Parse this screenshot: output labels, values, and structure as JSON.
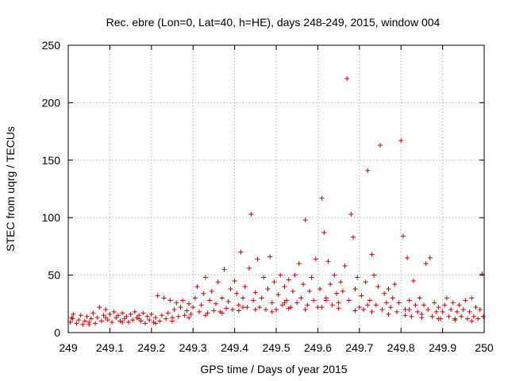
{
  "chart_data": {
    "type": "scatter",
    "title": "Rec. ebre (Lon=0, Lat=40, h=HE), days 248-249, 2015, window 004",
    "xlabel": "GPS time / Days of year 2015",
    "ylabel": "STEC from uqrg / TECUs",
    "xlim": [
      249,
      250
    ],
    "ylim": [
      0,
      250
    ],
    "xticks": [
      249,
      249.1,
      249.2,
      249.3,
      249.4,
      249.5,
      249.6,
      249.7,
      249.8,
      249.9,
      250
    ],
    "xtick_labels": [
      "249",
      "249.1",
      "249.2",
      "249.3",
      "249.4",
      "249.5",
      "249.6",
      "249.7",
      "249.8",
      "249.9",
      "250"
    ],
    "yticks": [
      0,
      50,
      100,
      150,
      200,
      250
    ],
    "ytick_labels": [
      "0",
      "50",
      "100",
      "150",
      "200",
      "250"
    ],
    "grid": true,
    "marker": "plus",
    "marker_color": "#cc0000",
    "series": [
      {
        "points": [
          [
            249.005,
            9
          ],
          [
            249.008,
            13
          ],
          [
            249.012,
            16
          ],
          [
            249.02,
            8
          ],
          [
            249.025,
            11
          ],
          [
            249.03,
            15
          ],
          [
            249.035,
            7
          ],
          [
            249.04,
            10
          ],
          [
            249.045,
            14
          ],
          [
            249.05,
            9
          ],
          [
            249.055,
            12
          ],
          [
            249.06,
            17
          ],
          [
            249.065,
            8
          ],
          [
            249.07,
            13
          ],
          [
            249.075,
            22
          ],
          [
            249.08,
            10
          ],
          [
            249.085,
            15
          ],
          [
            249.09,
            20
          ],
          [
            249.095,
            11
          ],
          [
            249.1,
            16
          ],
          [
            249.105,
            9
          ],
          [
            249.11,
            18
          ],
          [
            249.115,
            13
          ],
          [
            249.12,
            15
          ],
          [
            249.125,
            10
          ],
          [
            249.13,
            17
          ],
          [
            249.135,
            12
          ],
          [
            249.14,
            14
          ],
          [
            249.145,
            9
          ],
          [
            249.15,
            16
          ],
          [
            249.155,
            11
          ],
          [
            249.16,
            18
          ],
          [
            249.165,
            13
          ],
          [
            249.17,
            15
          ],
          [
            249.175,
            10
          ],
          [
            249.18,
            17
          ],
          [
            249.185,
            8
          ],
          [
            249.19,
            14
          ],
          [
            249.195,
            11
          ],
          [
            249.2,
            16
          ],
          [
            249.205,
            9
          ],
          [
            249.21,
            13
          ],
          [
            249.215,
            32
          ],
          [
            249.22,
            10
          ],
          [
            249.225,
            15
          ],
          [
            249.23,
            30
          ],
          [
            249.235,
            12
          ],
          [
            249.24,
            17
          ],
          [
            249.245,
            28
          ],
          [
            249.25,
            13
          ],
          [
            249.255,
            20
          ],
          [
            249.26,
            26
          ],
          [
            249.265,
            14
          ],
          [
            249.27,
            22
          ],
          [
            249.275,
            28
          ],
          [
            249.28,
            15
          ],
          [
            249.285,
            19
          ],
          [
            249.29,
            25
          ],
          [
            249.295,
            16
          ],
          [
            249.3,
            22
          ],
          [
            249.305,
            30
          ],
          [
            249.31,
            40
          ],
          [
            249.315,
            18
          ],
          [
            249.32,
            24
          ],
          [
            249.325,
            34
          ],
          [
            249.33,
            48
          ],
          [
            249.335,
            17
          ],
          [
            249.34,
            28
          ],
          [
            249.345,
            36
          ],
          [
            249.35,
            19
          ],
          [
            249.355,
            25
          ],
          [
            249.36,
            44
          ],
          [
            249.365,
            18
          ],
          [
            249.37,
            30
          ],
          [
            249.375,
            55
          ],
          [
            249.38,
            21
          ],
          [
            249.385,
            27
          ],
          [
            249.39,
            38
          ],
          [
            249.395,
            20
          ],
          [
            249.4,
            45
          ],
          [
            249.405,
            34
          ],
          [
            249.41,
            24
          ],
          [
            249.415,
            70
          ],
          [
            249.42,
            30
          ],
          [
            249.425,
            40
          ],
          [
            249.43,
            22
          ],
          [
            249.435,
            56
          ],
          [
            249.44,
            103
          ],
          [
            249.445,
            28
          ],
          [
            249.45,
            35
          ],
          [
            249.455,
            64
          ],
          [
            249.46,
            22
          ],
          [
            249.465,
            30
          ],
          [
            249.47,
            48
          ],
          [
            249.475,
            20
          ],
          [
            249.48,
            38
          ],
          [
            249.485,
            66
          ],
          [
            249.49,
            26
          ],
          [
            249.495,
            44
          ],
          [
            249.5,
            20
          ],
          [
            249.505,
            33
          ],
          [
            249.51,
            50
          ],
          [
            249.515,
            24
          ],
          [
            249.52,
            40
          ],
          [
            249.525,
            28
          ],
          [
            249.53,
            46
          ],
          [
            249.535,
            22
          ],
          [
            249.54,
            36
          ],
          [
            249.545,
            50
          ],
          [
            249.55,
            26
          ],
          [
            249.555,
            60
          ],
          [
            249.56,
            30
          ],
          [
            249.565,
            42
          ],
          [
            249.57,
            98
          ],
          [
            249.575,
            24
          ],
          [
            249.58,
            36
          ],
          [
            249.585,
            48
          ],
          [
            249.59,
            28
          ],
          [
            249.595,
            64
          ],
          [
            249.6,
            22
          ],
          [
            249.605,
            38
          ],
          [
            249.61,
            117
          ],
          [
            249.615,
            87
          ],
          [
            249.62,
            30
          ],
          [
            249.625,
            62
          ],
          [
            249.63,
            42
          ],
          [
            249.635,
            24
          ],
          [
            249.64,
            50
          ],
          [
            249.645,
            34
          ],
          [
            249.65,
            26
          ],
          [
            249.655,
            44
          ],
          [
            249.66,
            36
          ],
          [
            249.665,
            58
          ],
          [
            249.67,
            221
          ],
          [
            249.675,
            28
          ],
          [
            249.68,
            103
          ],
          [
            249.685,
            83
          ],
          [
            249.69,
            38
          ],
          [
            249.695,
            48
          ],
          [
            249.7,
            22
          ],
          [
            249.705,
            32
          ],
          [
            249.71,
            20
          ],
          [
            249.715,
            44
          ],
          [
            249.72,
            141
          ],
          [
            249.725,
            28
          ],
          [
            249.73,
            68
          ],
          [
            249.735,
            50
          ],
          [
            249.74,
            24
          ],
          [
            249.745,
            40
          ],
          [
            249.75,
            163
          ],
          [
            249.755,
            20
          ],
          [
            249.76,
            34
          ],
          [
            249.765,
            26
          ],
          [
            249.77,
            38
          ],
          [
            249.775,
            22
          ],
          [
            249.78,
            30
          ],
          [
            249.785,
            42
          ],
          [
            249.79,
            18
          ],
          [
            249.795,
            26
          ],
          [
            249.8,
            167
          ],
          [
            249.805,
            84
          ],
          [
            249.81,
            20
          ],
          [
            249.815,
            65
          ],
          [
            249.82,
            28
          ],
          [
            249.825,
            14
          ],
          [
            249.83,
            45
          ],
          [
            249.835,
            24
          ],
          [
            249.84,
            18
          ],
          [
            249.845,
            30
          ],
          [
            249.85,
            16
          ],
          [
            249.855,
            24
          ],
          [
            249.86,
            60
          ],
          [
            249.865,
            20
          ],
          [
            249.87,
            65
          ],
          [
            249.875,
            14
          ],
          [
            249.88,
            26
          ],
          [
            249.885,
            18
          ],
          [
            249.89,
            22
          ],
          [
            249.895,
            12
          ],
          [
            249.9,
            18
          ],
          [
            249.905,
            24
          ],
          [
            249.91,
            30
          ],
          [
            249.915,
            14
          ],
          [
            249.92,
            20
          ],
          [
            249.925,
            26
          ],
          [
            249.93,
            12
          ],
          [
            249.935,
            18
          ],
          [
            249.94,
            24
          ],
          [
            249.945,
            14
          ],
          [
            249.95,
            20
          ],
          [
            249.955,
            28
          ],
          [
            249.96,
            12
          ],
          [
            249.965,
            18
          ],
          [
            249.97,
            30
          ],
          [
            249.975,
            14
          ],
          [
            249.98,
            22
          ],
          [
            249.985,
            12
          ],
          [
            249.99,
            20
          ],
          [
            249.995,
            51
          ],
          [
            249.998,
            14
          ],
          [
            249.01,
            12
          ],
          [
            249.05,
            7
          ],
          [
            249.09,
            13
          ],
          [
            249.13,
            9
          ],
          [
            249.17,
            12
          ],
          [
            249.21,
            8
          ],
          [
            249.25,
            10
          ],
          [
            249.29,
            13
          ],
          [
            249.33,
            15
          ],
          [
            249.37,
            17
          ],
          [
            249.41,
            19
          ],
          [
            249.45,
            20
          ],
          [
            249.49,
            18
          ],
          [
            249.53,
            21
          ],
          [
            249.57,
            20
          ],
          [
            249.61,
            22
          ],
          [
            249.65,
            21
          ],
          [
            249.69,
            19
          ],
          [
            249.73,
            18
          ],
          [
            249.77,
            16
          ],
          [
            249.81,
            15
          ],
          [
            249.85,
            13
          ],
          [
            249.89,
            12
          ],
          [
            249.93,
            11
          ],
          [
            249.97,
            10
          ],
          [
            249.42,
            22
          ],
          [
            249.52,
            26
          ],
          [
            249.62,
            28
          ],
          [
            249.72,
            24
          ],
          [
            249.82,
            20
          ]
        ]
      }
    ]
  }
}
